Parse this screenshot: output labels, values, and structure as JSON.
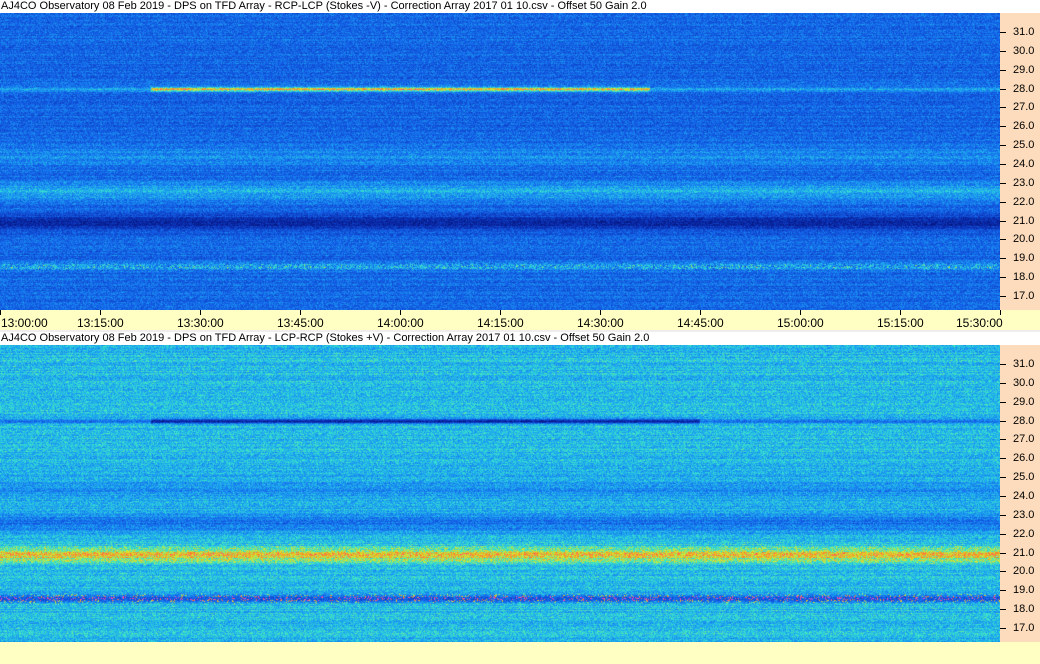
{
  "panels": [
    {
      "title": "AJ4CO Observatory 08 Feb 2019  -  DPS on TFD Array  -  RCP-LCP (Stokes -V)  -  Correction Array 2017 01 10.csv  -  Offset 50  Gain 2.0",
      "polarity": "negative"
    },
    {
      "title": "AJ4CO Observatory 08 Feb 2019  -  DPS on TFD Array  -  LCP-RCP (Stokes +V)  -  Correction Array 2017 01 10.csv  -  Offset 50  Gain 2.0",
      "polarity": "positive"
    }
  ],
  "frequency_labels": [
    "31.0",
    "30.0",
    "29.0",
    "28.0",
    "27.0",
    "26.0",
    "25.0",
    "24.0",
    "23.0",
    "22.0",
    "21.0",
    "20.0",
    "19.0",
    "18.0",
    "17.0"
  ],
  "time_labels": [
    "13:00:00",
    "13:15:00",
    "13:30:00",
    "13:45:00",
    "14:00:00",
    "14:15:00",
    "14:30:00",
    "14:45:00",
    "15:00:00",
    "15:15:00",
    "15:30:00"
  ],
  "colors": {
    "axis_right": "#fcdcbc",
    "axis_time": "#ffffc4",
    "base_blue": "#1a5ce0"
  }
}
